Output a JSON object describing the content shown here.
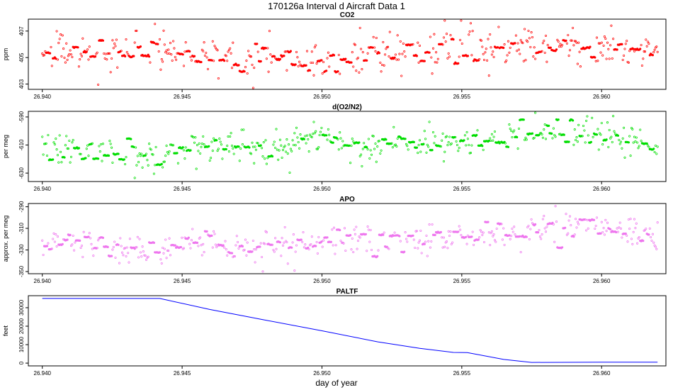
{
  "figure": {
    "title": "170126a   Interval d Aircraft Data 1",
    "xlabel": "day of year"
  },
  "chart_data": [
    {
      "type": "scatter",
      "title": "CO2",
      "ylabel": "ppm",
      "color": "#ff0000",
      "xlim": [
        26.9395,
        26.9623
      ],
      "ylim": [
        402.6,
        407.9
      ],
      "xticks": [
        26.94,
        26.945,
        26.95,
        26.955,
        26.96
      ],
      "xtick_labels": [
        "26.940",
        "26.945",
        "26.950",
        "26.955",
        "26.960"
      ],
      "yticks": [
        403,
        405,
        407
      ],
      "ytick_labels": [
        "403",
        "405",
        "407"
      ],
      "x_start": 26.94,
      "x_end": 26.962,
      "n_points": 640,
      "trend": [
        [
          26.94,
          405.3
        ],
        [
          26.942,
          405.1
        ],
        [
          26.944,
          405.6
        ],
        [
          26.946,
          405.0
        ],
        [
          26.948,
          405.2
        ],
        [
          26.9495,
          405.1
        ],
        [
          26.9505,
          404.2
        ],
        [
          26.952,
          405.6
        ],
        [
          26.954,
          405.8
        ],
        [
          26.956,
          405.8
        ],
        [
          26.958,
          405.7
        ],
        [
          26.96,
          405.6
        ],
        [
          26.962,
          405.6
        ]
      ],
      "noise": 0.75
    },
    {
      "type": "scatter",
      "title": "d(O2/N2)",
      "ylabel": "per meg",
      "color": "#00dd00",
      "xlim": [
        26.9395,
        26.9623
      ],
      "ylim": [
        -636,
        -586
      ],
      "xticks": [
        26.94,
        26.945,
        26.95,
        26.955,
        26.96
      ],
      "xtick_labels": [
        "26.940",
        "26.945",
        "26.950",
        "26.955",
        "26.960"
      ],
      "yticks": [
        -630,
        -610,
        -590
      ],
      "ytick_labels": [
        "-630",
        "-610",
        "-590"
      ],
      "x_start": 26.94,
      "x_end": 26.962,
      "n_points": 640,
      "trend": [
        [
          26.94,
          -611
        ],
        [
          26.942,
          -614
        ],
        [
          26.944,
          -620
        ],
        [
          26.9455,
          -612
        ],
        [
          26.947,
          -614
        ],
        [
          26.949,
          -611
        ],
        [
          26.95,
          -604
        ],
        [
          26.9515,
          -612
        ],
        [
          26.953,
          -607
        ],
        [
          26.955,
          -610
        ],
        [
          26.957,
          -602
        ],
        [
          26.958,
          -600
        ],
        [
          26.96,
          -604
        ],
        [
          26.962,
          -608
        ]
      ],
      "noise": 6
    },
    {
      "type": "scatter",
      "title": "APO",
      "ylabel": "approx. per meg",
      "color": "#ee77ee",
      "xlim": [
        26.9395,
        26.9623
      ],
      "ylim": [
        -352,
        -287
      ],
      "xticks": [
        26.94,
        26.945,
        26.95,
        26.955,
        26.96
      ],
      "xtick_labels": [
        "26.940",
        "26.945",
        "26.950",
        "26.955",
        "26.960"
      ],
      "yticks": [
        -350,
        -330,
        -310,
        -290
      ],
      "ytick_labels": [
        "-350",
        "-330",
        "-310",
        "-290"
      ],
      "x_start": 26.94,
      "x_end": 26.962,
      "n_points": 640,
      "trend": [
        [
          26.94,
          -324
        ],
        [
          26.942,
          -326
        ],
        [
          26.944,
          -332
        ],
        [
          26.9455,
          -322
        ],
        [
          26.947,
          -330
        ],
        [
          26.949,
          -327
        ],
        [
          26.95,
          -322
        ],
        [
          26.952,
          -320
        ],
        [
          26.954,
          -320
        ],
        [
          26.956,
          -318
        ],
        [
          26.958,
          -309
        ],
        [
          26.96,
          -311
        ],
        [
          26.962,
          -316
        ]
      ],
      "noise": 7
    },
    {
      "type": "line",
      "title": "PALTF",
      "ylabel": "feet",
      "color": "#0000ff",
      "xlim": [
        26.9395,
        26.9623
      ],
      "ylim": [
        -1500,
        36500
      ],
      "xticks": [
        26.94,
        26.945,
        26.95,
        26.955,
        26.96
      ],
      "xtick_labels": [
        "26.940",
        "26.945",
        "26.950",
        "26.955",
        "26.960"
      ],
      "yticks": [
        0,
        10000,
        20000,
        30000
      ],
      "ytick_labels": [
        "0",
        "10000",
        "20000",
        "30000"
      ],
      "x": [
        26.94,
        26.9442,
        26.946,
        26.948,
        26.95,
        26.952,
        26.9535,
        26.9547,
        26.9552,
        26.9565,
        26.9575,
        26.96,
        26.962
      ],
      "y": [
        35000,
        35000,
        29000,
        23200,
        17500,
        11500,
        8000,
        5800,
        5700,
        2000,
        400,
        500,
        500
      ]
    }
  ]
}
